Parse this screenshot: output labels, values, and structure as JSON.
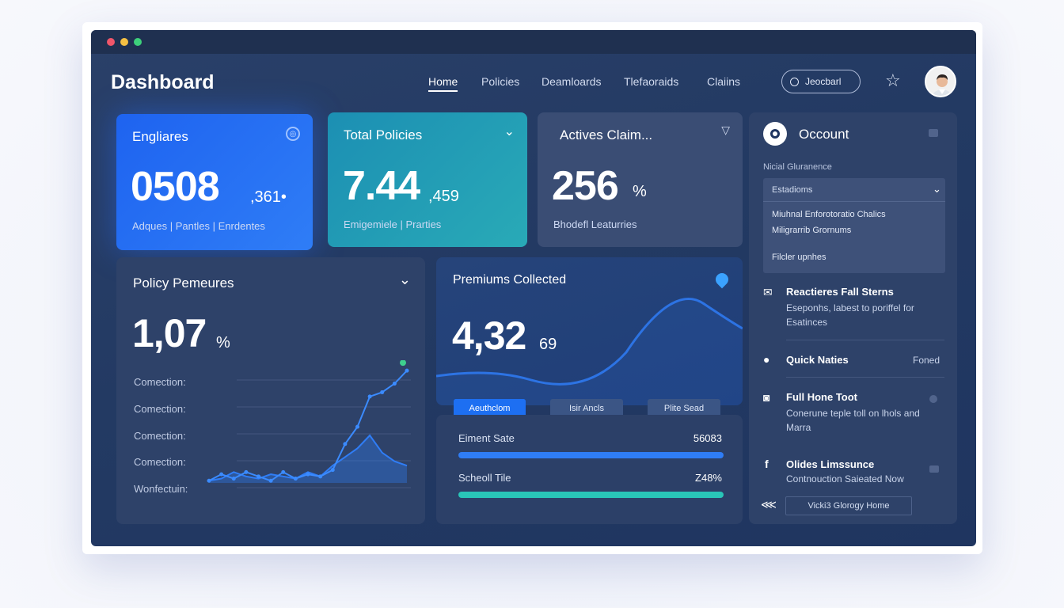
{
  "window": {
    "title": "Dashboard"
  },
  "nav": [
    "Home",
    "Policies",
    "Deamloards",
    "Tlefaoraids",
    "Claiins"
  ],
  "search": {
    "label": "Jeocbarl"
  },
  "cards": {
    "enquiries": {
      "label": "Engliares",
      "value": "0508",
      "suffix": ",361•",
      "sub": "Adques | Pantles | Enrdentes"
    },
    "total_policies": {
      "label": "Total Policies",
      "value": "7.44",
      "suffix": ",459",
      "sub": "Emigemiele | Prarties"
    },
    "active_claims": {
      "label": "Actives Claim...",
      "value": "256",
      "suffix": "%",
      "sub": "Bhodefl Leaturries"
    }
  },
  "policy_panel": {
    "label": "Policy Pemeures",
    "value": "1,07",
    "suffix": "%",
    "rows": [
      "Comection:",
      "Comection:",
      "Comection:",
      "Comection:",
      "Wonfectuin:"
    ]
  },
  "premiums": {
    "label": "Premiums Collected",
    "value": "4,32",
    "suffix": "69",
    "buttons": [
      "Aeuthclom",
      "Isir Ancls",
      "Plite Sead"
    ]
  },
  "progress": [
    {
      "label": "Eiment Sate",
      "value": "56083",
      "fill": 1.0,
      "color": "#2f7df6"
    },
    {
      "label": "Scheoll Tile",
      "value": "Z48%",
      "fill": 1.0,
      "color": "#29c6b8"
    }
  ],
  "sidebar": {
    "title": "Occount",
    "section_label": "Nicial Gluranence",
    "dropdown": {
      "selected": "Estadioms",
      "options": [
        "Miuhnal Enforotoratio Chalics",
        "Miligrarrib Grornums",
        "Filcler upnhes"
      ]
    },
    "items": [
      {
        "title": "Reactieres Fall Sterns",
        "sub": "Eseponhs, labest to poriffel for Esatinces"
      },
      {
        "title": "Quick Naties",
        "sub": "",
        "right": "Foned"
      },
      {
        "title": "Full Hone Toot",
        "sub": "Conerune teple toll on lhols and Marra"
      },
      {
        "title": "Olides Limssunce",
        "sub": "Contnouction Saieated Now"
      }
    ],
    "footer_button": "Vicki3 Glorogy Home"
  },
  "colors": {
    "accent": "#2f7df6",
    "teal": "#29aab7",
    "green": "#3ecf8e"
  },
  "chart_data": {
    "type": "line",
    "x": [
      0,
      1,
      2,
      3,
      4,
      5,
      6,
      7,
      8,
      9,
      10,
      11,
      12,
      13,
      14,
      15,
      16
    ],
    "series": [
      {
        "values": [
          1,
          4,
          2,
          5,
          3,
          1,
          5,
          2,
          4,
          3,
          6,
          18,
          26,
          40,
          42,
          46,
          52
        ]
      },
      {
        "values": [
          1,
          2,
          5,
          3,
          2,
          4,
          3,
          2,
          5,
          3,
          8,
          12,
          16,
          22,
          14,
          10,
          8
        ]
      }
    ]
  }
}
